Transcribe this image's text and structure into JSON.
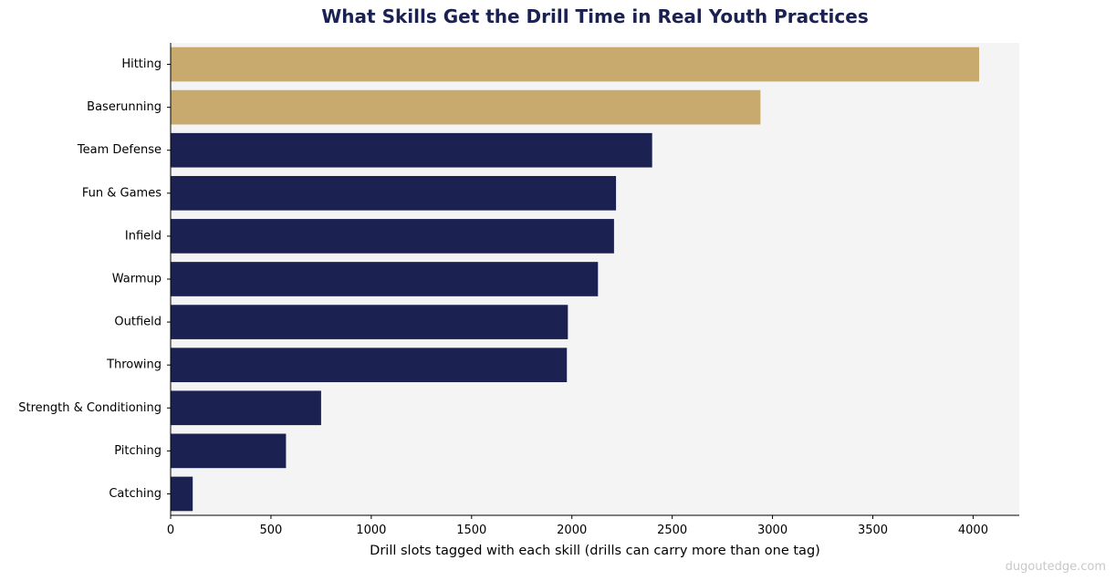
{
  "colors": {
    "title": "#1b2150",
    "highlight": "#c8a96e",
    "default": "#1b2252",
    "plot_background": "#f4f4f4",
    "axis": "#000000",
    "watermark": "#c8c8c8"
  },
  "watermark": "dugoutedge.com",
  "chart_data": {
    "type": "bar",
    "orientation": "horizontal",
    "title": "What Skills Get the Drill Time in Real Youth Practices",
    "xlabel": "Drill slots tagged with each skill (drills can carry more than one tag)",
    "ylabel": "",
    "categories": [
      "Hitting",
      "Baserunning",
      "Team Defense",
      "Fun & Games",
      "Infield",
      "Warmup",
      "Outfield",
      "Throwing",
      "Strength & Conditioning",
      "Pitching",
      "Catching"
    ],
    "values": [
      4030,
      2940,
      2400,
      2220,
      2210,
      2130,
      1980,
      1975,
      750,
      575,
      110
    ],
    "highlighted": [
      "Hitting",
      "Baserunning"
    ],
    "xlim": [
      0,
      4230
    ],
    "xticks": [
      0,
      500,
      1000,
      1500,
      2000,
      2500,
      3000,
      3500,
      4000
    ],
    "grid": false,
    "legend": "none"
  }
}
